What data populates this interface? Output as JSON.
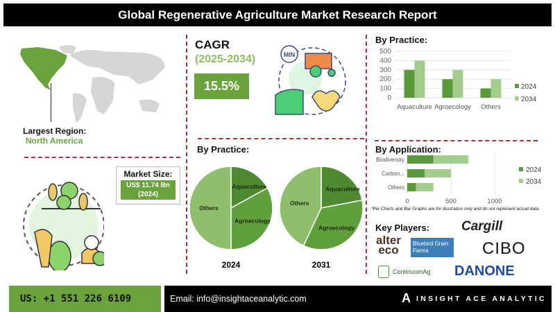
{
  "header": {
    "title": "Global Regenerative Agriculture Market Research Report"
  },
  "region": {
    "label": "Largest Region:",
    "value": "North America"
  },
  "cagr": {
    "label": "CAGR",
    "period": "(2025-2034)",
    "value": "15.5%"
  },
  "market_size": {
    "label": "Market Size:",
    "value": "US$ 11.74 Bn",
    "year": "(2024)"
  },
  "note": "*Pie Charts and Bar Graphs are for illustration only and do not represent actual data.",
  "key_players": {
    "label": "Key Players:",
    "logos": [
      "alter eco",
      "Bluebird Grain Farms",
      "Cargill",
      "CIBO Technologies",
      "ContinuumAg",
      "DANONE"
    ]
  },
  "footer": {
    "phone": "US: +1 551 226 6109",
    "email": "Email: info@insightaceanalytic.com",
    "brand": "INSIGHT ACE ANALYTIC"
  },
  "colors": {
    "dark_green": "#5a9a3a",
    "light_green": "#a4cc8c",
    "pie_dark": "#4f8a32",
    "pie_mid": "#5fa03c",
    "pie_light": "#8fbf6c",
    "accent_red": "#a8323a"
  },
  "chart_data": [
    {
      "type": "bar",
      "title": "By Practice:",
      "categories": [
        "Aquaculture",
        "Agroecology",
        "Others"
      ],
      "series": [
        {
          "name": "2024",
          "values": [
            300,
            200,
            100
          ]
        },
        {
          "name": "2034",
          "values": [
            400,
            300,
            200
          ]
        }
      ],
      "ylim": [
        0,
        500
      ],
      "yticks": [
        "0",
        "100",
        "200",
        "300",
        "400",
        "500"
      ],
      "grid": true,
      "legend": "right"
    },
    {
      "type": "bar",
      "orientation": "horizontal",
      "stacked": true,
      "title": "By Application:",
      "categories": [
        "Biodiversity",
        "Carbon...",
        "Others"
      ],
      "series": [
        {
          "name": "2024",
          "values": [
            300,
            200,
            100
          ]
        },
        {
          "name": "2034",
          "values": [
            400,
            300,
            200
          ]
        }
      ],
      "xlim": [
        0,
        1000
      ],
      "xticks": [
        "0",
        "500",
        "1000"
      ],
      "grid": true,
      "legend": "right"
    },
    {
      "type": "pie",
      "title": "By Practice:",
      "label": "2024",
      "labels": [
        "Aquaculture",
        "Agroecology",
        "Others"
      ],
      "values": [
        17,
        33,
        50
      ]
    },
    {
      "type": "pie",
      "label": "2031",
      "labels": [
        "Aquaculture",
        "Agroecology",
        "Others"
      ],
      "values": [
        22,
        35,
        43
      ]
    }
  ]
}
